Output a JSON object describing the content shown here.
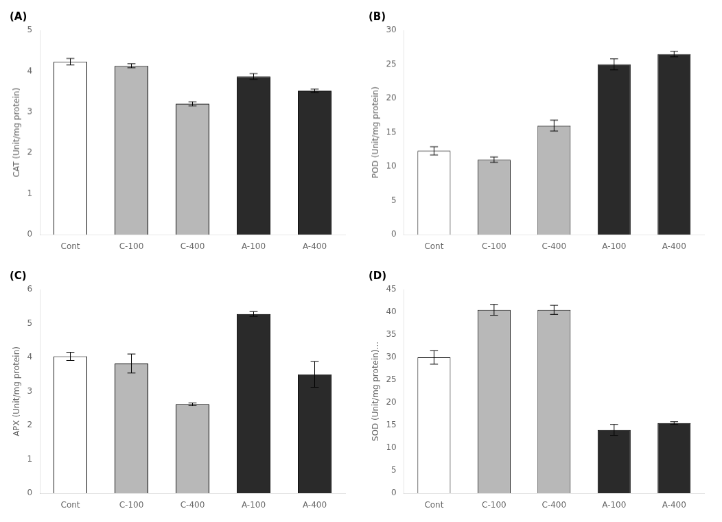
{
  "chart_data": [
    {
      "type": "bar",
      "title": "(A)",
      "ylabel": "CAT (Unit/mg protein)",
      "categories": [
        "Cont",
        "C-100",
        "C-400",
        "A-100",
        "A-400"
      ],
      "values": [
        4.23,
        4.13,
        3.2,
        3.87,
        3.52
      ],
      "errors": [
        0.08,
        0.05,
        0.05,
        0.07,
        0.04
      ],
      "colors": [
        "#ffffff",
        "#b8b8b8",
        "#b8b8b8",
        "#2a2a2a",
        "#2a2a2a"
      ],
      "ylim": [
        0,
        5
      ],
      "yticks": [
        0,
        1,
        2,
        3,
        4,
        5
      ],
      "grid": false
    },
    {
      "type": "bar",
      "title": "(B)",
      "ylabel": "POD (Unit/mg protein)",
      "categories": [
        "Cont",
        "C-100",
        "C-400",
        "A-100",
        "A-400"
      ],
      "values": [
        12.3,
        11.0,
        16.0,
        25.0,
        26.5
      ],
      "errors": [
        0.6,
        0.4,
        0.8,
        0.8,
        0.4
      ],
      "colors": [
        "#ffffff",
        "#b8b8b8",
        "#b8b8b8",
        "#2a2a2a",
        "#2a2a2a"
      ],
      "ylim": [
        0,
        30
      ],
      "yticks": [
        0,
        5,
        10,
        15,
        20,
        25,
        30
      ],
      "grid": false
    },
    {
      "type": "bar",
      "title": "(C)",
      "ylabel": "APX (Unit/mg protein)",
      "categories": [
        "Cont",
        "C-100",
        "C-400",
        "A-100",
        "A-400"
      ],
      "values": [
        4.03,
        3.82,
        2.62,
        5.28,
        3.5
      ],
      "errors": [
        0.12,
        0.28,
        0.04,
        0.07,
        0.38
      ],
      "colors": [
        "#ffffff",
        "#b8b8b8",
        "#b8b8b8",
        "#2a2a2a",
        "#2a2a2a"
      ],
      "ylim": [
        0,
        6
      ],
      "yticks": [
        0,
        1,
        2,
        3,
        4,
        5,
        6
      ],
      "grid": false
    },
    {
      "type": "bar",
      "title": "(D)",
      "ylabel": "SOD (Unit/mg protein)...",
      "categories": [
        "Cont",
        "C-100",
        "C-400",
        "A-100",
        "A-400"
      ],
      "values": [
        30.0,
        40.5,
        40.5,
        14.0,
        15.5
      ],
      "errors": [
        1.5,
        1.2,
        1.0,
        1.2,
        0.3
      ],
      "colors": [
        "#ffffff",
        "#b8b8b8",
        "#b8b8b8",
        "#2a2a2a",
        "#2a2a2a"
      ],
      "ylim": [
        0,
        45
      ],
      "yticks": [
        0,
        5,
        10,
        15,
        20,
        25,
        30,
        35,
        40,
        45
      ],
      "grid": false
    }
  ]
}
